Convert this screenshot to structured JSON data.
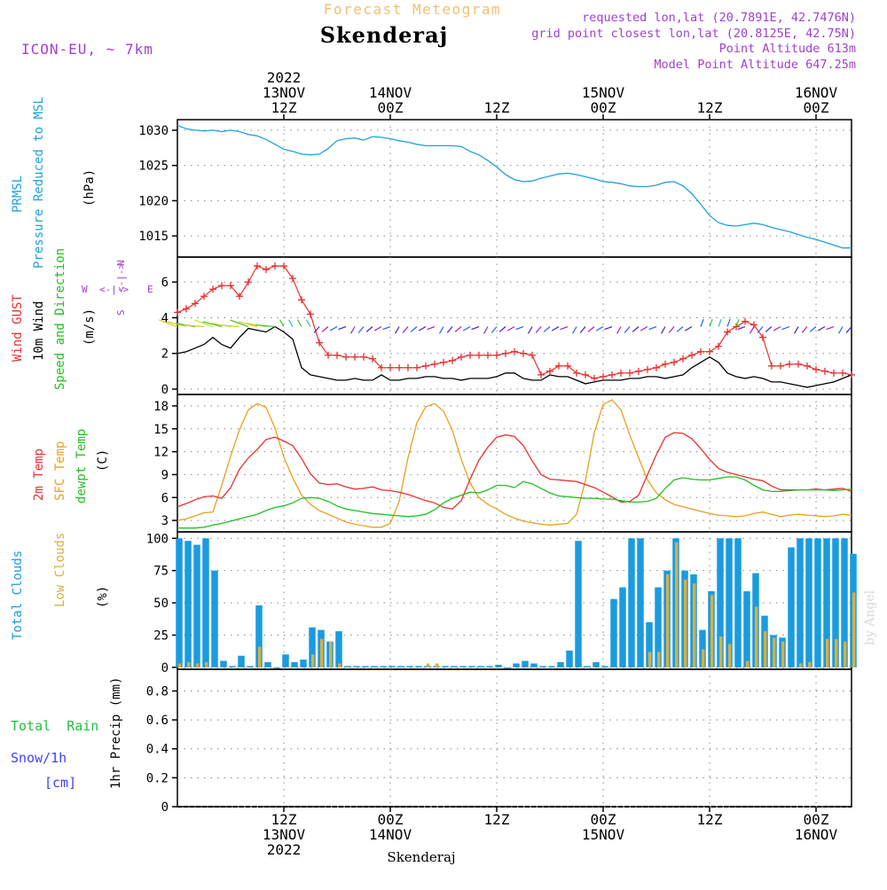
{
  "header": {
    "forecast_title": "Forecast Meteogram",
    "location": "Skenderaj",
    "model": "ICON-EU, ~ 7km",
    "requested": "requested lon,lat (20.7891E, 42.7476N)",
    "grid_point": "grid point closest lon,lat (20.8125E, 42.75N)",
    "point_alt": "Point Altitude 613m",
    "model_alt": "Model Point Altitude 647.25m",
    "footer": "Skenderaj",
    "credit": "by Angel"
  },
  "colors": {
    "pressure": "#1fa0e0",
    "gust": "#e83030",
    "wind": "#000000",
    "temp2m": "#e83030",
    "sfc": "#e8a020",
    "dewpt": "#20c020",
    "total_cloud": "#1a9be0",
    "low_cloud": "#d8b040",
    "rain": "#20c040",
    "snow": "#4040ff",
    "violet": "#a040d0",
    "orange_title": "#f0c070"
  },
  "time_axis": {
    "top": [
      {
        "hour": 12,
        "lines": [
          "2022",
          "13NOV",
          "12Z"
        ]
      },
      {
        "hour": 24,
        "lines": [
          "14NOV",
          "00Z"
        ]
      },
      {
        "hour": 36,
        "lines": [
          "12Z"
        ]
      },
      {
        "hour": 48,
        "lines": [
          "15NOV",
          "00Z"
        ]
      },
      {
        "hour": 60,
        "lines": [
          "12Z"
        ]
      },
      {
        "hour": 72,
        "lines": [
          "16NOV",
          "00Z"
        ]
      }
    ],
    "bottom": [
      {
        "hour": 12,
        "lines": [
          "12Z",
          "13NOV",
          "2022"
        ]
      },
      {
        "hour": 24,
        "lines": [
          "00Z",
          "14NOV"
        ]
      },
      {
        "hour": 36,
        "lines": [
          "12Z"
        ]
      },
      {
        "hour": 48,
        "lines": [
          "00Z",
          "15NOV"
        ]
      },
      {
        "hour": 60,
        "lines": [
          "12Z"
        ]
      },
      {
        "hour": 72,
        "lines": [
          "00Z",
          "16NOV"
        ]
      }
    ]
  },
  "panels": {
    "pressure": {
      "labels": [
        "PRMSL",
        "Pressure Reduced to MSL"
      ],
      "unit": "(hPa)",
      "ticks": [
        1015,
        1020,
        1025,
        1030
      ]
    },
    "wind": {
      "labels": [
        "Wind GUST",
        "10m Wind",
        "Speed and Direction"
      ],
      "unit": "(m/s)",
      "ticks": [
        0,
        2,
        4,
        6
      ],
      "compass": {
        "n": "N",
        "s": "S",
        "w": "W",
        "e": "E"
      }
    },
    "temp": {
      "labels": [
        "2m Temp",
        "SFC Temp",
        "dewpt Temp"
      ],
      "unit": "(C)",
      "ticks": [
        3,
        6,
        9,
        12,
        15,
        18
      ]
    },
    "cloud": {
      "labels": [
        "Total Clouds",
        "Low Clouds"
      ],
      "unit": "(%)",
      "ticks": [
        0,
        25,
        50,
        75,
        100
      ]
    },
    "precip": {
      "labels": [
        "Total  Rain",
        "Snow/1h",
        "[cm]"
      ],
      "unit": "1hr Precip (mm)",
      "ticks": [
        "0",
        "0.2",
        "0.4",
        "0.6",
        "0.8"
      ]
    }
  },
  "chart_data": [
    {
      "type": "line",
      "title": "PRMSL Pressure Reduced to MSL",
      "ylabel": "hPa",
      "ylim": [
        1012,
        1031.5
      ],
      "x_hours": [
        0,
        1,
        2,
        3,
        4,
        5,
        6,
        7,
        8,
        9,
        10,
        11,
        12,
        13,
        14,
        15,
        16,
        17,
        18,
        19,
        20,
        21,
        22,
        23,
        24,
        25,
        26,
        27,
        28,
        29,
        30,
        31,
        32,
        33,
        34,
        35,
        36,
        37,
        38,
        39,
        40,
        41,
        42,
        43,
        44,
        45,
        46,
        47,
        48,
        49,
        50,
        51,
        52,
        53,
        54,
        55,
        56,
        57,
        58,
        59,
        60,
        61,
        62,
        63,
        64,
        65,
        66,
        67,
        68,
        69,
        70,
        71,
        72,
        73,
        74,
        75,
        76
      ],
      "series": [
        {
          "name": "PRMSL",
          "values": [
            1030.7,
            1030.2,
            1030.0,
            1029.9,
            1030.0,
            1029.8,
            1030.0,
            1029.8,
            1029.4,
            1029.2,
            1028.7,
            1028.0,
            1027.3,
            1027.0,
            1026.6,
            1026.5,
            1026.6,
            1027.4,
            1028.5,
            1028.8,
            1028.9,
            1028.6,
            1029.1,
            1029.0,
            1028.8,
            1028.5,
            1028.3,
            1028.0,
            1027.8,
            1027.8,
            1027.8,
            1027.8,
            1027.7,
            1027.0,
            1026.5,
            1025.7,
            1024.8,
            1023.7,
            1023.0,
            1022.7,
            1022.8,
            1023.2,
            1023.5,
            1023.8,
            1023.9,
            1023.7,
            1023.4,
            1023.1,
            1022.7,
            1022.6,
            1022.4,
            1022.1,
            1022.0,
            1022.0,
            1022.2,
            1022.6,
            1022.7,
            1022.1,
            1021.0,
            1019.5,
            1017.9,
            1016.9,
            1016.5,
            1016.4,
            1016.6,
            1016.8,
            1016.6,
            1016.2,
            1015.9,
            1015.6,
            1015.2,
            1014.8,
            1014.5,
            1014.1,
            1013.7,
            1013.3,
            1013.3
          ]
        }
      ]
    },
    {
      "type": "line",
      "title": "Wind GUST / 10m Wind",
      "ylabel": "m/s",
      "ylim": [
        -0.3,
        7.4
      ],
      "x_hours": [
        0,
        1,
        2,
        3,
        4,
        5,
        6,
        7,
        8,
        9,
        10,
        11,
        12,
        13,
        14,
        15,
        16,
        17,
        18,
        19,
        20,
        21,
        22,
        23,
        24,
        25,
        26,
        27,
        28,
        29,
        30,
        31,
        32,
        33,
        34,
        35,
        36,
        37,
        38,
        39,
        40,
        41,
        42,
        43,
        44,
        45,
        46,
        47,
        48,
        49,
        50,
        51,
        52,
        53,
        54,
        55,
        56,
        57,
        58,
        59,
        60,
        61,
        62,
        63,
        64,
        65,
        66,
        67,
        68,
        69,
        70,
        71,
        72,
        73,
        74,
        75,
        76
      ],
      "series": [
        {
          "name": "Wind GUST",
          "values": [
            4.3,
            4.5,
            4.8,
            5.2,
            5.6,
            5.8,
            5.8,
            5.2,
            6.0,
            6.9,
            6.7,
            6.9,
            6.9,
            6.2,
            5.0,
            4.2,
            2.6,
            1.9,
            1.9,
            1.8,
            1.8,
            1.8,
            1.7,
            1.2,
            1.2,
            1.2,
            1.2,
            1.2,
            1.3,
            1.4,
            1.5,
            1.6,
            1.8,
            1.9,
            1.9,
            1.9,
            1.9,
            2.0,
            2.1,
            2.0,
            1.9,
            0.8,
            1.0,
            1.3,
            1.3,
            0.9,
            0.8,
            0.6,
            0.7,
            0.8,
            0.9,
            0.9,
            1.0,
            1.1,
            1.2,
            1.4,
            1.5,
            1.7,
            1.9,
            2.1,
            2.1,
            2.4,
            3.2,
            3.5,
            3.8,
            3.6,
            2.9,
            1.3,
            1.3,
            1.4,
            1.4,
            1.3,
            1.1,
            1.0,
            0.9,
            0.9,
            0.8
          ]
        },
        {
          "name": "10m Wind",
          "values": [
            2.0,
            2.1,
            2.3,
            2.5,
            2.9,
            2.5,
            2.3,
            2.9,
            3.4,
            3.3,
            3.2,
            3.5,
            3.2,
            2.8,
            1.2,
            0.8,
            0.7,
            0.6,
            0.5,
            0.5,
            0.6,
            0.5,
            0.5,
            0.8,
            0.5,
            0.5,
            0.6,
            0.6,
            0.7,
            0.7,
            0.6,
            0.6,
            0.5,
            0.6,
            0.6,
            0.6,
            0.7,
            0.9,
            0.9,
            0.6,
            0.5,
            0.5,
            0.8,
            0.7,
            0.7,
            0.5,
            0.3,
            0.4,
            0.5,
            0.5,
            0.5,
            0.6,
            0.6,
            0.7,
            0.7,
            0.6,
            0.7,
            0.8,
            1.2,
            1.5,
            1.8,
            1.5,
            0.9,
            0.7,
            0.6,
            0.7,
            0.6,
            0.4,
            0.4,
            0.3,
            0.2,
            0.1,
            0.2,
            0.3,
            0.4,
            0.6,
            0.8
          ]
        }
      ]
    },
    {
      "type": "line",
      "title": "2m Temp / SFC Temp / dewpt Temp",
      "ylabel": "C",
      "ylim": [
        1.5,
        19.5
      ],
      "x_hours": [
        0,
        1,
        2,
        3,
        4,
        5,
        6,
        7,
        8,
        9,
        10,
        11,
        12,
        13,
        14,
        15,
        16,
        17,
        18,
        19,
        20,
        21,
        22,
        23,
        24,
        25,
        26,
        27,
        28,
        29,
        30,
        31,
        32,
        33,
        34,
        35,
        36,
        37,
        38,
        39,
        40,
        41,
        42,
        43,
        44,
        45,
        46,
        47,
        48,
        49,
        50,
        51,
        52,
        53,
        54,
        55,
        56,
        57,
        58,
        59,
        60,
        61,
        62,
        63,
        64,
        65,
        66,
        67,
        68,
        69,
        70,
        71,
        72,
        73,
        74,
        75,
        76
      ],
      "series": [
        {
          "name": "2m Temp",
          "values": [
            4.8,
            5.2,
            5.7,
            6.1,
            6.2,
            5.9,
            7.3,
            9.7,
            11.2,
            12.3,
            13.6,
            13.9,
            13.4,
            12.8,
            11.1,
            9.1,
            7.9,
            7.7,
            7.8,
            7.4,
            7.1,
            7.2,
            7.4,
            7.0,
            6.9,
            6.7,
            6.4,
            6.0,
            5.6,
            5.3,
            4.7,
            4.5,
            5.6,
            8.4,
            10.9,
            12.6,
            13.9,
            14.2,
            14.0,
            12.8,
            10.8,
            9.0,
            8.4,
            8.3,
            8.2,
            8.1,
            7.7,
            7.3,
            6.7,
            6.1,
            5.4,
            5.5,
            6.3,
            9.0,
            11.6,
            13.9,
            14.5,
            14.4,
            13.7,
            12.4,
            11.0,
            9.8,
            9.3,
            9.0,
            8.7,
            8.4,
            8.2,
            7.5,
            7.0,
            7.0,
            7.0,
            7.0,
            7.1,
            7.0,
            7.1,
            7.2,
            6.8
          ]
        },
        {
          "name": "SFC Temp",
          "values": [
            3.0,
            3.2,
            3.6,
            4.0,
            4.1,
            7.6,
            11.4,
            14.9,
            17.5,
            18.3,
            17.8,
            15.1,
            11.3,
            8.6,
            6.3,
            5.1,
            4.3,
            3.8,
            3.3,
            2.8,
            2.5,
            2.3,
            2.1,
            2.1,
            2.6,
            5.5,
            11.2,
            15.8,
            17.9,
            18.3,
            17.3,
            14.8,
            11.0,
            7.9,
            6.0,
            5.1,
            4.5,
            3.8,
            3.3,
            2.9,
            2.7,
            2.5,
            2.4,
            2.5,
            2.6,
            3.8,
            8.2,
            14.5,
            18.2,
            18.8,
            17.5,
            14.2,
            11.2,
            8.3,
            6.6,
            5.7,
            5.1,
            4.8,
            4.5,
            4.2,
            3.9,
            3.7,
            3.6,
            3.5,
            3.6,
            3.9,
            4.1,
            3.8,
            3.5,
            3.7,
            3.8,
            3.7,
            3.6,
            3.5,
            3.6,
            3.8,
            3.7
          ]
        },
        {
          "name": "dewpt Temp",
          "values": [
            2.0,
            2.0,
            2.0,
            2.1,
            2.4,
            2.6,
            2.9,
            3.2,
            3.5,
            3.8,
            4.3,
            4.7,
            4.9,
            5.3,
            5.9,
            6.0,
            5.9,
            5.5,
            4.9,
            4.5,
            4.3,
            4.1,
            3.9,
            3.8,
            3.7,
            3.6,
            3.5,
            3.6,
            3.8,
            4.4,
            5.3,
            5.9,
            6.3,
            6.7,
            6.6,
            7.0,
            7.6,
            7.6,
            7.3,
            8.1,
            7.8,
            7.2,
            6.6,
            6.2,
            6.1,
            6.0,
            5.9,
            5.9,
            5.8,
            5.8,
            5.6,
            5.4,
            5.4,
            5.5,
            5.9,
            7.2,
            8.3,
            8.6,
            8.4,
            8.3,
            8.3,
            8.5,
            8.7,
            8.7,
            8.3,
            7.6,
            7.0,
            6.8,
            6.8,
            6.9,
            7.0,
            7.0,
            7.0,
            7.0,
            6.9,
            7.0,
            7.1
          ]
        }
      ]
    },
    {
      "type": "bar",
      "title": "Total Clouds / Low Clouds",
      "ylabel": "%",
      "ylim": [
        -1.5,
        105
      ],
      "x_hours": [
        0,
        1,
        2,
        3,
        4,
        5,
        6,
        7,
        8,
        9,
        10,
        11,
        12,
        13,
        14,
        15,
        16,
        17,
        18,
        19,
        20,
        21,
        22,
        23,
        24,
        25,
        26,
        27,
        28,
        29,
        30,
        31,
        32,
        33,
        34,
        35,
        36,
        37,
        38,
        39,
        40,
        41,
        42,
        43,
        44,
        45,
        46,
        47,
        48,
        49,
        50,
        51,
        52,
        53,
        54,
        55,
        56,
        57,
        58,
        59,
        60,
        61,
        62,
        63,
        64,
        65,
        66,
        67,
        68,
        69,
        70,
        71,
        72,
        73,
        74,
        75,
        76
      ],
      "series": [
        {
          "name": "Total Clouds",
          "values": [
            100,
            98,
            95,
            100,
            75,
            5,
            1,
            9,
            1,
            48,
            4,
            0,
            10,
            4,
            6,
            31,
            29,
            20,
            28,
            1,
            1,
            1,
            1,
            1,
            1,
            1,
            1,
            1,
            1,
            1,
            1,
            1,
            1,
            1,
            1,
            1,
            2,
            0,
            3,
            5,
            3,
            1,
            1,
            4,
            13,
            98,
            1,
            4,
            1,
            53,
            62,
            100,
            100,
            35,
            62,
            75,
            100,
            75,
            72,
            29,
            59,
            100,
            100,
            100,
            59,
            73,
            40,
            25,
            23,
            93,
            100,
            100,
            100,
            100,
            100,
            100,
            88
          ]
        },
        {
          "name": "Low Clouds",
          "values": [
            3,
            4,
            3,
            4,
            0,
            0,
            0,
            0,
            0,
            16,
            0,
            0,
            0,
            0,
            0,
            10,
            22,
            20,
            3,
            0,
            0,
            0,
            0,
            0,
            0,
            0,
            0,
            0,
            3,
            3,
            0,
            0,
            0,
            0,
            0,
            0,
            0,
            0,
            0,
            0,
            0,
            0,
            0,
            0,
            0,
            0,
            0,
            0,
            0,
            0,
            0,
            0,
            0,
            12,
            12,
            72,
            97,
            68,
            65,
            14,
            56,
            24,
            18,
            0,
            5,
            47,
            28,
            23,
            20,
            0,
            3,
            4,
            0,
            22,
            22,
            20,
            58
          ]
        }
      ]
    },
    {
      "type": "bar",
      "title": "1hr Precip",
      "ylabel": "1hr Precip (mm)",
      "ylim": [
        0,
        0.95
      ],
      "x_hours": [
        0,
        76
      ],
      "series": [
        {
          "name": "Total Rain",
          "values": [
            0,
            0
          ]
        }
      ]
    }
  ]
}
